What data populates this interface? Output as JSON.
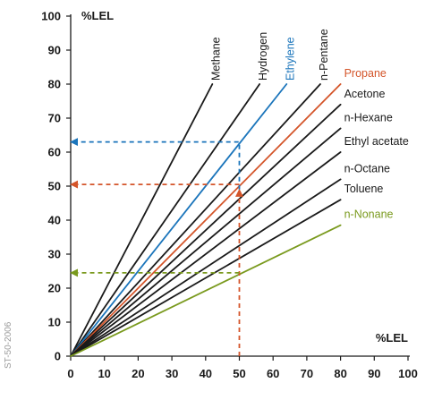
{
  "chart_data": {
    "type": "line",
    "xlabel": "%LEL",
    "ylabel": "%LEL",
    "xlim": [
      0,
      100
    ],
    "ylim": [
      0,
      100
    ],
    "xticks": [
      0,
      10,
      20,
      30,
      40,
      50,
      60,
      70,
      80,
      90,
      100
    ],
    "yticks": [
      0,
      10,
      20,
      30,
      40,
      50,
      60,
      70,
      80,
      90,
      100
    ],
    "grid": false,
    "series": [
      {
        "name": "Methane",
        "color": "#1a1a1a",
        "label_style": "rotated",
        "x": [
          0,
          42
        ],
        "y": [
          0,
          80
        ]
      },
      {
        "name": "Hydrogen",
        "color": "#1a1a1a",
        "label_style": "rotated",
        "x": [
          0,
          56
        ],
        "y": [
          0,
          80
        ]
      },
      {
        "name": "Ethylene",
        "color": "#1b75bb",
        "label_style": "rotated",
        "x": [
          0,
          64
        ],
        "y": [
          0,
          80
        ]
      },
      {
        "name": "n-Pentane",
        "color": "#1a1a1a",
        "label_style": "rotated",
        "x": [
          0,
          74
        ],
        "y": [
          0,
          80
        ]
      },
      {
        "name": "Propane",
        "color": "#d4552a",
        "label_style": "horizontal",
        "x": [
          0,
          80
        ],
        "y": [
          0,
          80
        ]
      },
      {
        "name": "Acetone",
        "color": "#1a1a1a",
        "label_style": "horizontal",
        "x": [
          0,
          80
        ],
        "y": [
          0,
          74
        ]
      },
      {
        "name": "n-Hexane",
        "color": "#1a1a1a",
        "label_style": "horizontal",
        "x": [
          0,
          80
        ],
        "y": [
          0,
          67
        ]
      },
      {
        "name": "Ethyl acetate",
        "color": "#1a1a1a",
        "label_style": "horizontal",
        "x": [
          0,
          80
        ],
        "y": [
          0,
          60
        ]
      },
      {
        "name": "n-Octane",
        "color": "#1a1a1a",
        "label_style": "horizontal",
        "x": [
          0,
          80
        ],
        "y": [
          0,
          52
        ]
      },
      {
        "name": "Toluene",
        "color": "#1a1a1a",
        "label_style": "horizontal",
        "x": [
          0,
          80
        ],
        "y": [
          0,
          46
        ]
      },
      {
        "name": "n-Nonane",
        "color": "#7a9a1e",
        "label_style": "horizontal",
        "x": [
          0,
          80
        ],
        "y": [
          0,
          38.5
        ]
      }
    ],
    "annotations": [
      {
        "color": "#1b75bb",
        "points": [
          [
            50,
            49
          ],
          [
            50,
            63
          ],
          [
            0,
            63
          ]
        ],
        "arrow": "end"
      },
      {
        "color": "#d4552a",
        "points": [
          [
            50,
            0
          ],
          [
            50,
            49
          ]
        ],
        "arrow": "end"
      },
      {
        "color": "#d4552a",
        "points": [
          [
            50,
            50.5
          ],
          [
            0,
            50.5
          ]
        ],
        "arrow": "end"
      },
      {
        "color": "#7a9a1e",
        "points": [
          [
            50,
            24.5
          ],
          [
            0,
            24.5
          ]
        ],
        "arrow": "end"
      }
    ],
    "watermark": "ST-50-2006"
  }
}
